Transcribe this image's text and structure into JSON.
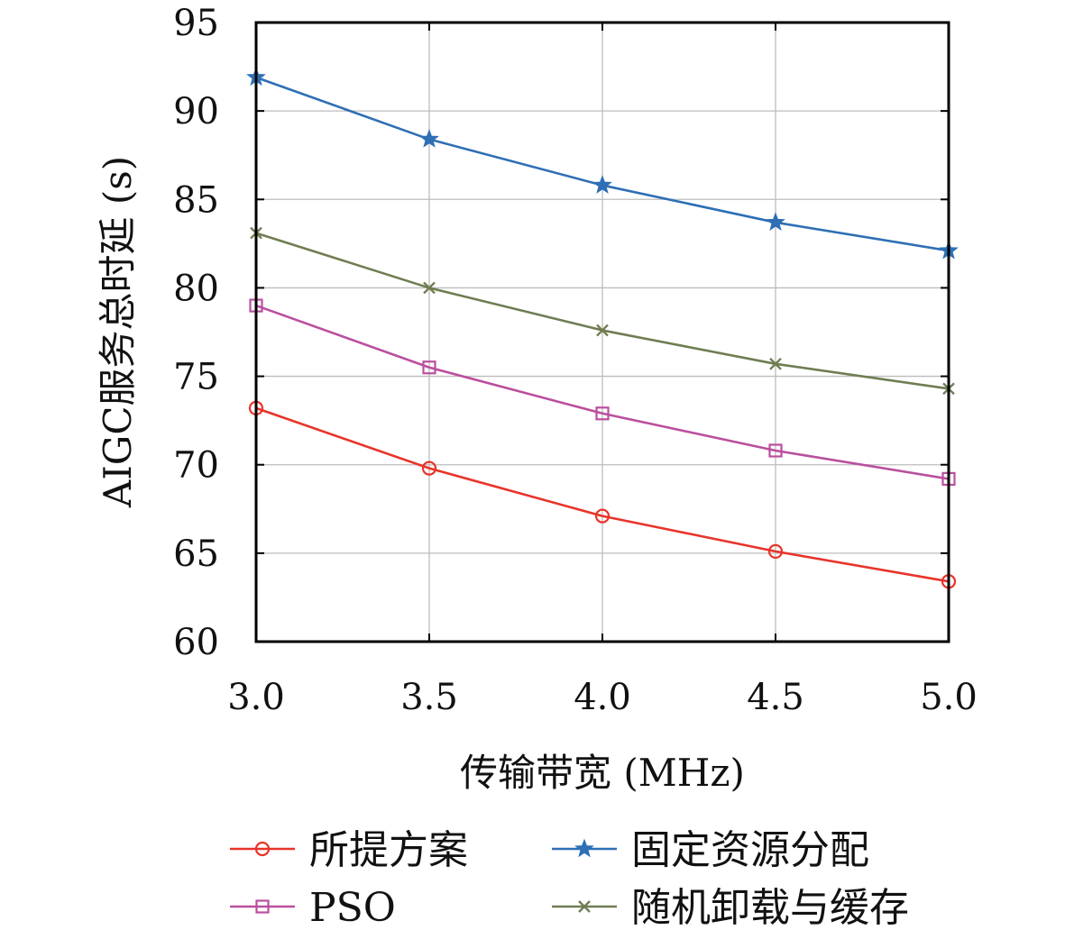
{
  "chart_data": {
    "type": "line",
    "title": "",
    "xlabel": "传输带宽 (MHz)",
    "ylabel": "AIGC服务总时延 (s)",
    "x": [
      3.0,
      3.5,
      4.0,
      4.5,
      5.0
    ],
    "xticks": [
      "3.0",
      "3.5",
      "4.0",
      "4.5",
      "5.0"
    ],
    "yticks": [
      "60",
      "65",
      "70",
      "75",
      "80",
      "85",
      "90",
      "95"
    ],
    "xlim": [
      3.0,
      5.0
    ],
    "ylim": [
      60,
      95
    ],
    "grid": true,
    "legend_position": "bottom",
    "series": [
      {
        "name": "所提方案",
        "marker": "circle",
        "color": "#e8342a",
        "values": [
          73.2,
          69.8,
          67.1,
          65.1,
          63.4
        ]
      },
      {
        "name": "固定资源分配",
        "marker": "star",
        "color": "#2e6fb5",
        "values": [
          91.9,
          88.4,
          85.8,
          83.7,
          82.1
        ]
      },
      {
        "name": "PSO",
        "marker": "square",
        "color": "#bb4f9e",
        "values": [
          79.0,
          75.5,
          72.9,
          70.8,
          69.2
        ]
      },
      {
        "name": "随机卸载与缓存",
        "marker": "x",
        "color": "#6f7d52",
        "values": [
          83.1,
          80.0,
          77.6,
          75.7,
          74.3
        ]
      }
    ]
  }
}
